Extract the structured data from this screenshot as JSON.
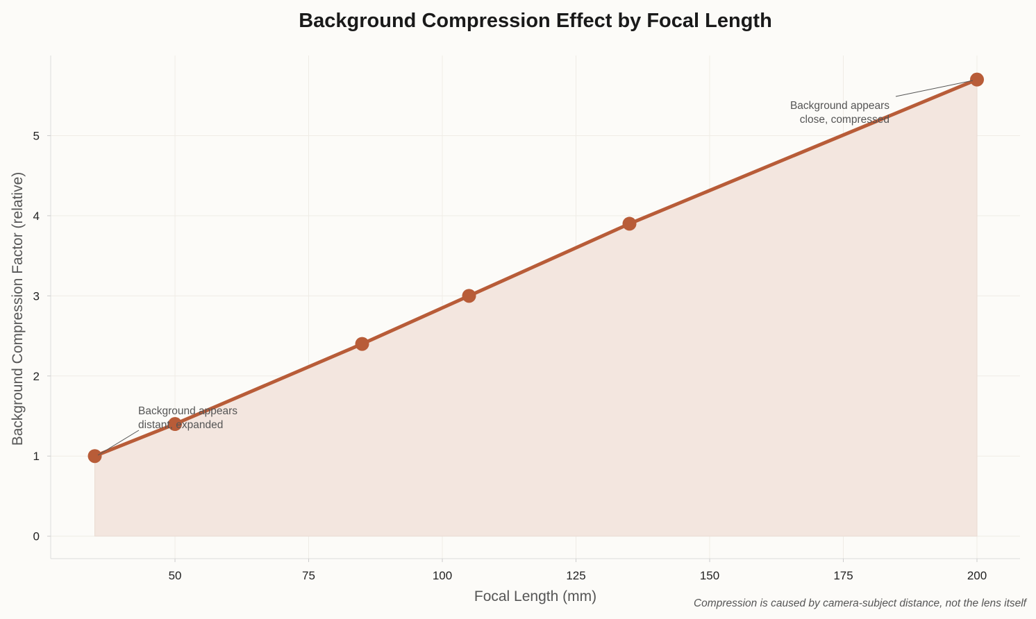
{
  "chart_data": {
    "type": "line",
    "title": "Background Compression Effect by Focal Length",
    "xlabel": "Focal Length (mm)",
    "ylabel": "Background Compression Factor (relative)",
    "x": [
      35,
      50,
      85,
      105,
      135,
      200
    ],
    "values": [
      1.0,
      1.4,
      2.4,
      3.0,
      3.9,
      5.7
    ],
    "xlim": [
      26.75,
      208.05
    ],
    "ylim": [
      -0.28,
      6.0
    ],
    "xticks": [
      50,
      75,
      100,
      125,
      150,
      175,
      200
    ],
    "yticks": [
      0,
      1,
      2,
      3,
      4,
      5
    ],
    "grid": true,
    "area_fill": true,
    "colors": {
      "line": "#b85c38",
      "fill": "#f3e6df",
      "grid": "#efece6"
    },
    "annotations": [
      {
        "text_lines": [
          "Background appears",
          "distant, expanded"
        ],
        "x": 35,
        "y": 1.0
      },
      {
        "text_lines": [
          "Background appears",
          "close, compressed"
        ],
        "x": 200,
        "y": 5.7
      }
    ],
    "footnote": "Compression is caused by camera-subject distance, not the lens itself"
  }
}
